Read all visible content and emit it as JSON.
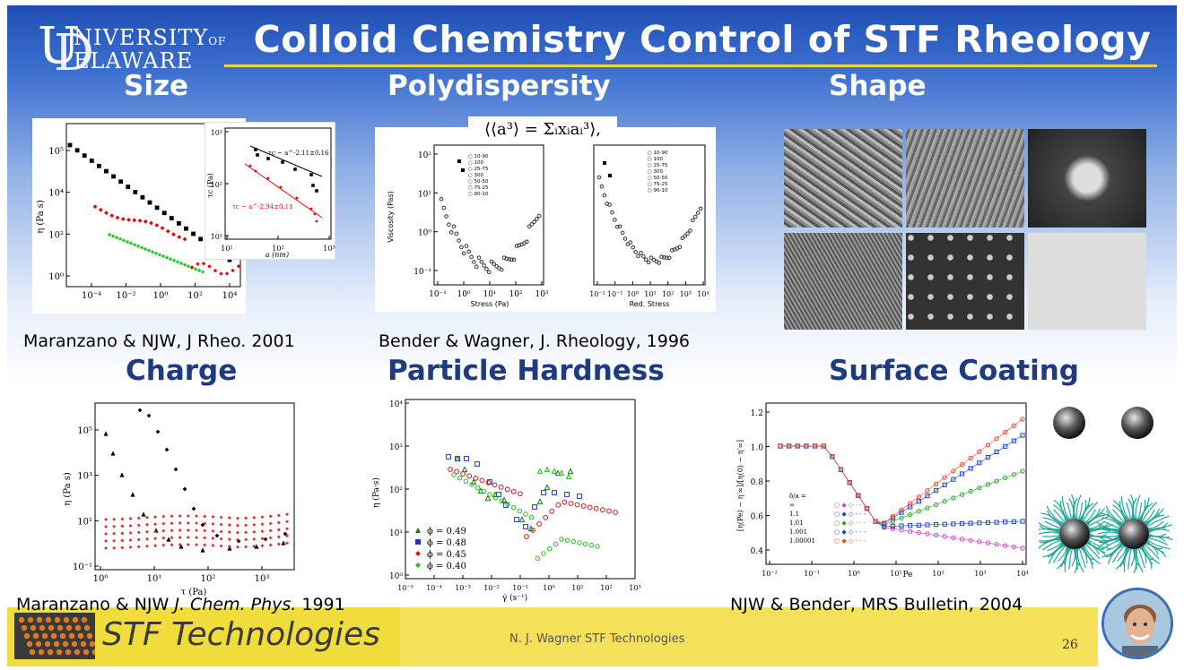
{
  "title": "Colloid Chemistry Control of STF Rheology",
  "logo": {
    "line1": "NIVERSITY",
    "of": "OF",
    "line2": "ELAWARE",
    "letter1": "U",
    "letter2": "D"
  },
  "sections": {
    "size": "Size",
    "polydispersity": "Polydispersity",
    "shape": "Shape",
    "charge": "Charge",
    "hardness": "Particle Hardness",
    "coating": "Surface Coating"
  },
  "captions": {
    "size": "Maranzano & NJW, J Rheo. 2001",
    "polydispersity": "Bender & Wagner, J. Rheology, 1996",
    "charge_authors": "Maranzano & NJW ",
    "charge_journal": "J. Chem. Phys.",
    "charge_year": " 1991",
    "coating": "NJW  & Bender, MRS Bulletin, 2004"
  },
  "formula": "⟨⟨a³⟩ = Σᵢxᵢaᵢ³⟩,",
  "footer": {
    "company": "STF Technologies",
    "author": "N. J. Wagner   STF Technologies",
    "page": "26"
  },
  "icons": [
    "ud-logo-icon",
    "stf-logo-icon",
    "sphere-icon",
    "brush-sphere-icon",
    "avatar"
  ],
  "chart_data": [
    {
      "type": "scatter",
      "name_ref": "size-viscosity",
      "ylabel": "η (Pa s)",
      "xticks": [
        "10⁻⁴",
        "10⁻²",
        "10⁰",
        "10²",
        "10⁴"
      ],
      "yticks": [
        "10⁰",
        "10²",
        "10⁴",
        "10⁵"
      ],
      "inset": {
        "ylabel": "τc (Pa)",
        "xlabel": "a (nm)",
        "fit_black": "τc ~ a^-2.11±0.16",
        "fit_red": "τc ~ a^-2.94±0.11"
      }
    },
    {
      "type": "scatter",
      "name_ref": "polydispersity-viscosity",
      "ylabel": "Viscosity (Pas)",
      "xlabel_left": "Stress (Pa)",
      "xlabel_right": "Red. Stress",
      "legend_left": [
        "10-90",
        "100",
        "25-75",
        "300",
        "50-50",
        "75-25",
        "90-10"
      ],
      "legend_right": [
        "10-90",
        "100",
        "25-75",
        "300",
        "50-50",
        "75-25",
        "90-10"
      ]
    },
    {
      "type": "scatter",
      "name_ref": "charge-viscosity",
      "ylabel": "η (Pa s)",
      "xlabel": "τ (Pa)",
      "xticks": [
        "10⁰",
        "10¹",
        "10²",
        "10³"
      ],
      "yticks": [
        "10⁻¹",
        "10¹",
        "10³",
        "10⁵"
      ]
    },
    {
      "type": "scatter",
      "name_ref": "hardness-viscosity",
      "ylabel": "η (Pa·s)",
      "xlabel": "γ̇ (s⁻¹)",
      "xticks": [
        "10⁻⁵",
        "10⁻⁴",
        "10⁻³",
        "10⁻²",
        "10⁻¹",
        "10⁰",
        "10¹",
        "10²",
        "10³"
      ],
      "yticks": [
        "10⁰",
        "10¹",
        "10²",
        "10³",
        "10⁴"
      ],
      "legend": [
        "ϕ = 0.49",
        "ϕ = 0.48",
        "ϕ = 0.45",
        "ϕ = 0.40"
      ],
      "colors": [
        "#1a7a1a",
        "#1a33cc",
        "#cc1a1a",
        "#22bb22"
      ]
    },
    {
      "type": "scatter",
      "name_ref": "coating-reduced-viscosity",
      "ylabel": "[η(Pe) − η′∞]/[η(0) − η′∞]",
      "xlabel": "Pe",
      "xticks": [
        "10⁻²",
        "10⁻¹",
        "10⁰",
        "10¹",
        "10²",
        "10³",
        "10⁴"
      ],
      "yticks": [
        "0.4",
        "0.6",
        "0.8",
        "1.0",
        "1.2"
      ],
      "legend_title": "δ/a =",
      "legend": [
        "∞",
        "1.1",
        "1.01",
        "1.001",
        "1.00001"
      ]
    }
  ]
}
